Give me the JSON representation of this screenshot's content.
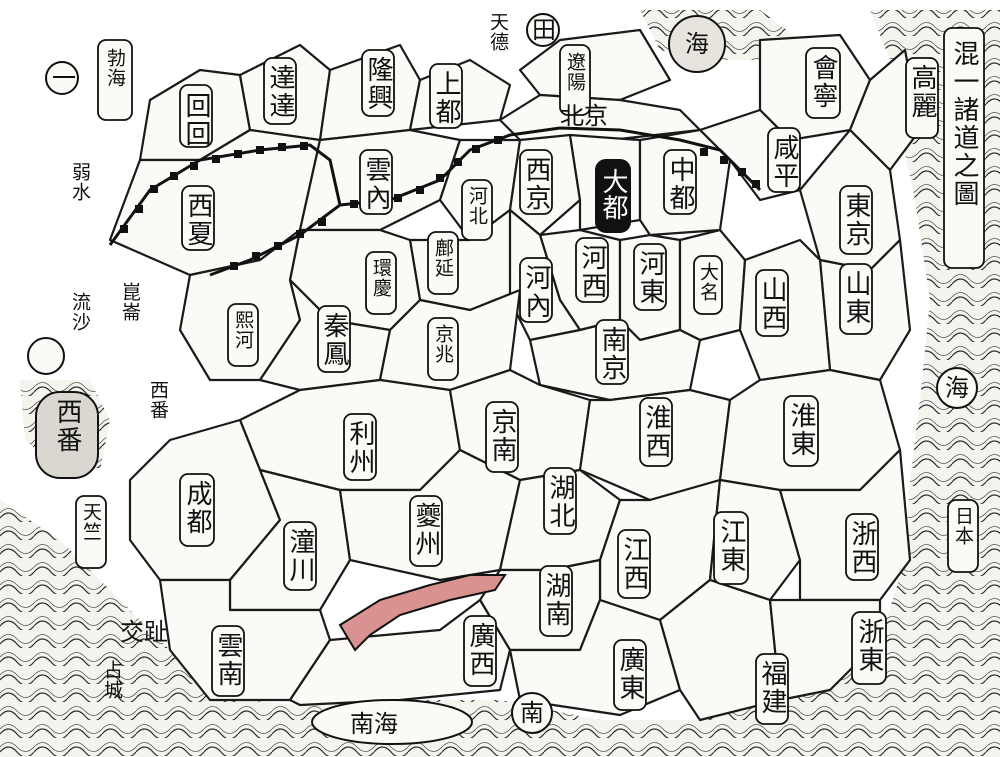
{
  "map": {
    "title": "混一諸道之圖",
    "highlight_color": "#d9928f",
    "top_labels": {
      "circle_one": "一",
      "bohai": "勃海",
      "tiande": "天德",
      "field_mark": "田",
      "liaoyang": "遼陽",
      "seal": "海",
      "north_capital": "北京"
    },
    "regions": {
      "huihui": "回回",
      "dada": "達達",
      "longxing": "隆興",
      "shangdu": "上都",
      "yunnei": "雲內",
      "xixia": "西夏",
      "xijing": "西京",
      "hebei": "河北",
      "dadu": "大都",
      "zhongdu": "中都",
      "xianping": "咸平",
      "huining": "會寧",
      "gaoli": "高麗",
      "dongjing": "東京",
      "shandong": "山東",
      "fuyan": "鄜延",
      "hexi": "河西",
      "hedong": "河東",
      "daming": "大名",
      "shanxi": "山西",
      "qinfeng": "秦鳳",
      "huanqing": "環慶",
      "xihe": "熙河",
      "jingzhao": "京兆",
      "henei": "河內",
      "nanjing": "南京",
      "lizhou": "利州",
      "jingnan": "京南",
      "huaixi": "淮西",
      "huaidong": "淮東",
      "chengdu": "成都",
      "kuizhou": "夔州",
      "hubei": "湖北",
      "jiangxi": "江西",
      "jiangdong": "江東",
      "zhexi": "浙西",
      "tongchuan": "潼川",
      "hunan": "湖南",
      "yunnan": "雲南",
      "guangxi": "廣西",
      "guangdong": "廣東",
      "fujian": "福建",
      "zhedong": "浙東"
    },
    "outside_labels": {
      "ruoshui": "弱水",
      "guangsha": "流沙",
      "tibet_west": "西番",
      "kunlun": "崑崙",
      "xifan_seal": "西番",
      "tianzhu": "天竺",
      "jiaozhi": "交趾",
      "ribenjp": "日本",
      "hai_right": "海",
      "nan_sea": "南",
      "bottom_sea": "南海",
      "yuyuan": "占城"
    }
  }
}
